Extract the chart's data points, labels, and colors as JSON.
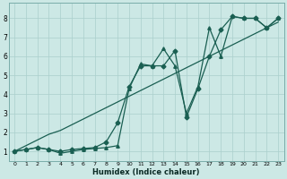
{
  "bg_color": "#cce8e5",
  "grid_color": "#aacfcc",
  "line_color": "#1a5f52",
  "xlabel": "Humidex (Indice chaleur)",
  "ylim": [
    0.5,
    8.8
  ],
  "xlim": [
    -0.5,
    23.5
  ],
  "line_straight": {
    "x": [
      0,
      1,
      2,
      3,
      4,
      5,
      6,
      7,
      8,
      9,
      10,
      11,
      12,
      13,
      14,
      15,
      16,
      17,
      18,
      19,
      20,
      21,
      22,
      23
    ],
    "y": [
      1.0,
      1.3,
      1.6,
      1.9,
      2.1,
      2.4,
      2.7,
      3.0,
      3.3,
      3.6,
      3.9,
      4.2,
      4.5,
      4.8,
      5.1,
      5.4,
      5.7,
      6.0,
      6.3,
      6.6,
      6.9,
      7.2,
      7.5,
      7.8
    ]
  },
  "line_upper": {
    "x": [
      0,
      1,
      2,
      3,
      4,
      5,
      6,
      7,
      8,
      9,
      10,
      11,
      12,
      13,
      14,
      15,
      16,
      17,
      18,
      19,
      20,
      21,
      22,
      23
    ],
    "y": [
      1.0,
      1.1,
      1.2,
      1.1,
      0.9,
      1.0,
      1.1,
      1.15,
      1.2,
      1.3,
      4.3,
      5.6,
      5.5,
      6.4,
      5.5,
      3.0,
      4.4,
      7.5,
      6.0,
      8.1,
      8.0,
      8.0,
      7.5,
      8.0
    ]
  },
  "line_lower": {
    "x": [
      0,
      1,
      2,
      3,
      4,
      5,
      6,
      7,
      8,
      9,
      10,
      11,
      12,
      13,
      14,
      15,
      16,
      17,
      18,
      19,
      20,
      21,
      22,
      23
    ],
    "y": [
      1.0,
      1.1,
      1.2,
      1.1,
      1.0,
      1.1,
      1.15,
      1.2,
      1.5,
      2.5,
      4.4,
      5.5,
      5.5,
      5.5,
      6.3,
      2.8,
      4.3,
      6.0,
      7.4,
      8.1,
      8.0,
      8.0,
      7.5,
      8.0
    ]
  }
}
